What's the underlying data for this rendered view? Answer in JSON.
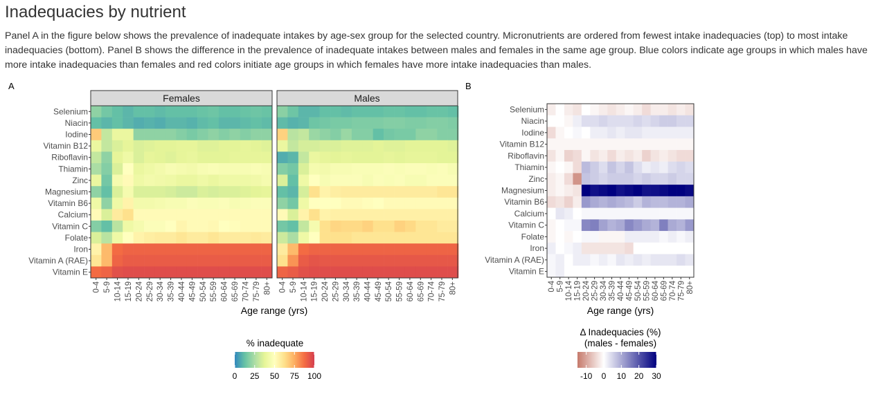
{
  "page": {
    "title": "Inadequacies by nutrient",
    "description": "Panel A in the figure below shows the prevalence of inadequate intakes by age-sex group for the selected country. Micronutrients are ordered from fewest intake inadequacies (top) to most intake inadequacies (bottom). Panel B shows the difference in the prevalence of inadequate intakes between males and females in the same age group. Blue colors indicate age groups in which males have more intake inadequacies than females and red colors initiate age groups in which females have more intake inadequacies than males."
  },
  "chart_data": [
    {
      "type": "heatmap",
      "panel_tag": "A",
      "facets": [
        "Females",
        "Males"
      ],
      "xlabel": "Age range (yrs)",
      "ylabel": "",
      "x": [
        "0-4",
        "5-9",
        "10-14",
        "15-19",
        "20-24",
        "25-29",
        "30-34",
        "35-39",
        "40-44",
        "45-49",
        "50-54",
        "55-59",
        "60-64",
        "65-69",
        "70-74",
        "75-79",
        "80+"
      ],
      "y": [
        "Selenium",
        "Niacin",
        "Iodine",
        "Vitamin B12",
        "Riboflavin",
        "Thiamin",
        "Zinc",
        "Magnesium",
        "Vitamin B6",
        "Calcium",
        "Vitamin C",
        "Folate",
        "Iron",
        "Vitamin A (RAE)",
        "Vitamin E"
      ],
      "legend": {
        "title": "% inadequate",
        "ticks": [
          0,
          25,
          50,
          75,
          100
        ],
        "position": "bottom",
        "colors": [
          "#3288bd",
          "#66c2a5",
          "#abdda4",
          "#e6f598",
          "#ffffbf",
          "#fee08b",
          "#fdae61",
          "#f46d43",
          "#d53e4f"
        ]
      },
      "values": {
        "Females": [
          [
            20,
            15,
            12,
            10,
            12,
            12,
            11,
            12,
            12,
            12,
            13,
            14,
            12,
            12,
            13,
            14,
            13
          ],
          [
            12,
            10,
            12,
            10,
            8,
            9,
            8,
            10,
            10,
            9,
            11,
            12,
            10,
            10,
            11,
            12,
            11
          ],
          [
            68,
            30,
            40,
            40,
            20,
            20,
            20,
            20,
            18,
            16,
            18,
            20,
            18,
            20,
            18,
            20,
            20
          ],
          [
            40,
            30,
            35,
            38,
            35,
            36,
            37,
            37,
            38,
            38,
            36,
            36,
            37,
            37,
            38,
            37,
            36
          ],
          [
            30,
            20,
            38,
            42,
            35,
            38,
            37,
            36,
            38,
            39,
            37,
            37,
            37,
            38,
            38,
            38,
            38
          ],
          [
            25,
            18,
            35,
            50,
            40,
            42,
            44,
            46,
            45,
            44,
            46,
            47,
            46,
            46,
            46,
            47,
            46
          ],
          [
            40,
            15,
            45,
            52,
            42,
            44,
            43,
            42,
            40,
            40,
            42,
            40,
            42,
            42,
            42,
            43,
            45
          ],
          [
            20,
            12,
            35,
            45,
            35,
            35,
            35,
            34,
            32,
            32,
            35,
            34,
            35,
            35,
            36,
            37,
            38
          ],
          [
            42,
            20,
            42,
            55,
            44,
            44,
            45,
            46,
            46,
            48,
            47,
            47,
            48,
            46,
            47,
            48,
            48
          ],
          [
            52,
            35,
            58,
            62,
            52,
            52,
            52,
            52,
            52,
            52,
            52,
            52,
            52,
            52,
            52,
            52,
            52
          ],
          [
            18,
            12,
            28,
            42,
            45,
            48,
            48,
            50,
            54,
            52,
            52,
            53,
            50,
            51,
            52,
            52,
            52
          ],
          [
            35,
            28,
            42,
            50,
            55,
            57,
            58,
            58,
            60,
            58,
            58,
            60,
            58,
            58,
            58,
            59,
            58
          ],
          [
            55,
            72,
            88,
            90,
            90,
            90,
            90,
            90,
            90,
            90,
            90,
            90,
            90,
            90,
            90,
            90,
            90
          ],
          [
            60,
            72,
            90,
            92,
            92,
            92,
            92,
            92,
            92,
            92,
            92,
            92,
            92,
            92,
            92,
            92,
            92
          ],
          [
            88,
            90,
            95,
            96,
            96,
            96,
            96,
            96,
            96,
            96,
            96,
            96,
            96,
            96,
            96,
            96,
            96
          ]
        ],
        "Males": [
          [
            19,
            14,
            10,
            10,
            12,
            12,
            11,
            12,
            12,
            12,
            13,
            13,
            12,
            12,
            13,
            13,
            12
          ],
          [
            11,
            9,
            10,
            14,
            15,
            16,
            16,
            17,
            17,
            17,
            18,
            18,
            17,
            17,
            18,
            18,
            17
          ],
          [
            66,
            28,
            30,
            22,
            20,
            18,
            22,
            18,
            18,
            12,
            15,
            16,
            16,
            20,
            20,
            18,
            18
          ],
          [
            40,
            30,
            34,
            34,
            35,
            35,
            36,
            36,
            36,
            37,
            36,
            36,
            37,
            37,
            37,
            37,
            36
          ],
          [
            8,
            10,
            30,
            40,
            38,
            37,
            38,
            37,
            37,
            37,
            38,
            37,
            38,
            38,
            38,
            37,
            37
          ],
          [
            18,
            15,
            35,
            45,
            44,
            46,
            46,
            47,
            47,
            47,
            48,
            47,
            48,
            48,
            47,
            48,
            46
          ],
          [
            35,
            12,
            42,
            50,
            46,
            48,
            48,
            48,
            46,
            48,
            47,
            48,
            46,
            46,
            48,
            48,
            48
          ],
          [
            12,
            10,
            34,
            62,
            55,
            57,
            58,
            58,
            58,
            58,
            58,
            58,
            58,
            58,
            58,
            60,
            60
          ],
          [
            20,
            15,
            42,
            50,
            50,
            50,
            52,
            52,
            51,
            50,
            52,
            52,
            52,
            52,
            52,
            52,
            52
          ],
          [
            52,
            35,
            55,
            62,
            55,
            56,
            56,
            56,
            56,
            56,
            56,
            56,
            56,
            56,
            56,
            56,
            56
          ],
          [
            15,
            12,
            30,
            45,
            62,
            65,
            64,
            64,
            66,
            62,
            62,
            66,
            64,
            60,
            60,
            58,
            58
          ],
          [
            32,
            25,
            42,
            50,
            62,
            62,
            62,
            60,
            60,
            60,
            60,
            60,
            60,
            60,
            60,
            60,
            60
          ],
          [
            58,
            72,
            88,
            90,
            90,
            90,
            90,
            90,
            90,
            90,
            90,
            90,
            90,
            90,
            90,
            90,
            90
          ],
          [
            62,
            80,
            92,
            94,
            93,
            93,
            93,
            93,
            93,
            93,
            93,
            93,
            93,
            93,
            93,
            93,
            93
          ],
          [
            90,
            92,
            95,
            96,
            96,
            96,
            96,
            96,
            96,
            96,
            96,
            96,
            96,
            96,
            96,
            96,
            96
          ]
        ]
      }
    },
    {
      "type": "heatmap",
      "panel_tag": "B",
      "xlabel": "Age range (yrs)",
      "ylabel": "",
      "x": [
        "0-4",
        "5-9",
        "10-14",
        "15-19",
        "20-24",
        "25-29",
        "30-34",
        "35-39",
        "40-44",
        "45-49",
        "50-54",
        "55-59",
        "60-64",
        "65-69",
        "70-74",
        "75-79",
        "80+"
      ],
      "y": [
        "Selenium",
        "Niacin",
        "Iodine",
        "Vitamin B12",
        "Riboflavin",
        "Thiamin",
        "Zinc",
        "Magnesium",
        "Vitamin B6",
        "Calcium",
        "Vitamin C",
        "Folate",
        "Iron",
        "Vitamin A (RAE)",
        "Vitamin E"
      ],
      "legend": {
        "title_line1": "Δ Inadequacies (%)",
        "title_line2": "(males - females)",
        "ticks": [
          -10,
          0,
          10,
          20,
          30
        ],
        "range": [
          -15,
          30
        ],
        "position": "bottom",
        "colors": [
          "#c5796b",
          "#ffffff",
          "#00007f"
        ]
      },
      "values": [
        [
          -2,
          0,
          -2,
          -3,
          0,
          -1,
          -2,
          -3,
          -2,
          -1,
          -2,
          -4,
          -2,
          -2,
          -3,
          -2,
          -3
        ],
        [
          0,
          0,
          -1,
          2,
          4,
          4,
          5,
          4,
          4,
          4,
          5,
          4,
          5,
          6,
          6,
          5,
          5
        ],
        [
          -4,
          -1,
          0,
          1,
          0,
          2,
          2,
          3,
          2,
          3,
          3,
          2,
          2,
          2,
          2,
          2,
          2
        ],
        [
          -1,
          -1,
          -1,
          -1,
          -1,
          -1,
          -1,
          -1,
          -1,
          -1,
          -1,
          -1,
          -1,
          -1,
          -1,
          -1,
          -1
        ],
        [
          -3,
          -1,
          -5,
          -4,
          -1,
          -3,
          -2,
          -4,
          -2,
          -3,
          -2,
          -5,
          -3,
          -2,
          -3,
          -4,
          -4
        ],
        [
          -1,
          0,
          -1,
          -4,
          8,
          6,
          4,
          7,
          5,
          7,
          4,
          2,
          3,
          2,
          4,
          5,
          4
        ],
        [
          -2,
          -1,
          -4,
          -12,
          7,
          6,
          5,
          6,
          6,
          6,
          5,
          6,
          5,
          5,
          6,
          5,
          5
        ],
        [
          -2,
          -1,
          -2,
          -3,
          30,
          28,
          29,
          30,
          28,
          29,
          30,
          28,
          28,
          29,
          30,
          30,
          29
        ],
        [
          -4,
          -3,
          -5,
          -2,
          12,
          10,
          9,
          10,
          9,
          8,
          6,
          9,
          8,
          8,
          9,
          9,
          10
        ],
        [
          0,
          3,
          2,
          0,
          1,
          1,
          1,
          1,
          1,
          1,
          1,
          1,
          1,
          1,
          1,
          1,
          1
        ],
        [
          -1,
          0,
          1,
          1,
          14,
          15,
          11,
          9,
          10,
          14,
          12,
          10,
          9,
          15,
          10,
          9,
          12
        ],
        [
          -1,
          0,
          -1,
          0,
          1,
          1,
          -1,
          -1,
          -1,
          2,
          2,
          2,
          2,
          1,
          2,
          1,
          2
        ],
        [
          2,
          0,
          1,
          2,
          -3,
          -3,
          -3,
          -3,
          -3,
          -4,
          0,
          0,
          0,
          0,
          0,
          0,
          0
        ],
        [
          1,
          2,
          0,
          2,
          2,
          1,
          2,
          1,
          3,
          2,
          3,
          2,
          3,
          3,
          3,
          4,
          3
        ],
        [
          1,
          2,
          0,
          0,
          0,
          0,
          0,
          0,
          0,
          0,
          0,
          0,
          0,
          0,
          0,
          0,
          0
        ]
      ]
    }
  ]
}
